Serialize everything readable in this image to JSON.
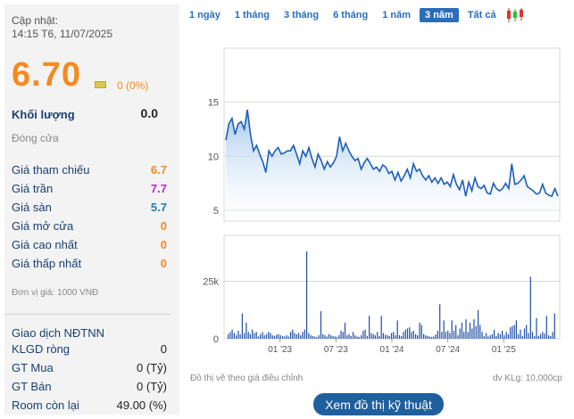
{
  "quote": {
    "updated_label": "Cập nhật:",
    "updated_time": "14:15 T6, 11/07/2025",
    "price": "6.70",
    "change": "0 (0%)",
    "volume_label": "Khối lượng",
    "volume": "0.0",
    "status": "Đóng cửa",
    "rows": [
      {
        "label": "Giá tham chiếu",
        "value": "6.7",
        "color": "#f58a1f"
      },
      {
        "label": "Giá trần",
        "value": "7.7",
        "color": "#c227c2"
      },
      {
        "label": "Giá sàn",
        "value": "5.7",
        "color": "#1e7fae"
      },
      {
        "label": "Giá mở cửa",
        "value": "0",
        "color": "#f58a1f"
      },
      {
        "label": "Giá cao nhất",
        "value": "0",
        "color": "#f58a1f"
      },
      {
        "label": "Giá thấp nhất",
        "value": "0",
        "color": "#f58a1f"
      }
    ],
    "unit_note": "Đơn vị giá: 1000 VNĐ"
  },
  "foreign": {
    "title": "Giao dịch NĐTNN",
    "rows": [
      {
        "label": "KLGD ròng",
        "value": "0"
      },
      {
        "label": "GT Mua",
        "value": "0 (Tỷ)"
      },
      {
        "label": "GT Bán",
        "value": "0 (Tỷ)"
      },
      {
        "label": "Room còn lại",
        "value": "49.00 (%)"
      }
    ]
  },
  "tabs": [
    "1 ngày",
    "1 tháng",
    "3 tháng",
    "6 tháng",
    "1 năm",
    "3 năm",
    "Tất cả"
  ],
  "active_tab": "3 năm",
  "icons": {
    "candlestick": "candlestick-chart-icon"
  },
  "chart_data": {
    "type": "area",
    "price_axis_ticks": [
      "15",
      "10",
      "5"
    ],
    "price_ylim": [
      4,
      20
    ],
    "x_ticks": [
      "01 '23",
      "07 '23",
      "01 '24",
      "07 '24",
      "01 '25"
    ],
    "price_series": [
      11.5,
      13,
      13.5,
      12,
      13,
      13.2,
      12.5,
      14.3,
      12,
      10.5,
      11,
      10.2,
      9.5,
      8.5,
      10.5,
      10,
      10.5,
      10.8,
      10.2,
      10.3,
      10.5,
      10.5,
      11,
      10.2,
      9.3,
      10.5,
      10,
      10.8,
      9.8,
      9,
      10.2,
      9.6,
      8.8,
      9.5,
      9,
      9.4,
      10,
      11.8,
      10.5,
      11.2,
      10.5,
      10,
      9.6,
      9.8,
      8.8,
      9.4,
      9.8,
      9.3,
      8.8,
      9,
      8.6,
      9.2,
      9,
      8.4,
      8.6,
      7.8,
      8.5,
      7.7,
      8.2,
      8.8,
      8,
      9.3,
      8.6,
      8.8,
      8.2,
      7.8,
      8.2,
      7.6,
      8,
      7.5,
      8,
      7.4,
      7.6,
      7.2,
      8.3,
      7.4,
      6.9,
      7.8,
      6.3,
      7.6,
      6.8,
      8,
      7.2,
      7,
      7.3,
      6.6,
      6.5,
      7.5,
      7,
      6.8,
      7,
      7.5,
      7,
      9.3,
      7.4,
      7.5,
      7.8,
      8.2,
      7.2,
      7,
      6.8,
      6.5,
      6.6,
      7.4,
      6.6,
      6.4,
      6.3,
      7,
      6.3
    ],
    "volume_axis_ticks": [
      "25k",
      "0"
    ],
    "volume_ylim": [
      0,
      45000
    ],
    "volume_series": [
      2000,
      3000,
      4000,
      2500,
      1500,
      3500,
      2000,
      11000,
      2500,
      7000,
      3000,
      2000,
      4000,
      2500,
      3000,
      1000,
      2000,
      3000,
      1500,
      2000,
      3000,
      2500,
      1500,
      1200,
      1800,
      2000,
      1500,
      1200,
      1000,
      1500,
      1000,
      3000,
      4000,
      2500,
      2000,
      2500,
      1500,
      3000,
      4000,
      38000,
      2500,
      1500,
      1200,
      1000,
      800,
      1500,
      12000,
      2000,
      1500,
      1000,
      2000,
      1500,
      1200,
      1000,
      800,
      1500,
      3500,
      3000,
      7000,
      1500,
      2000,
      1200,
      3000,
      1500,
      1000,
      800,
      1500,
      3500,
      4000,
      1200,
      10000,
      2500,
      2000,
      1500,
      3000,
      1200,
      10000,
      2500,
      1800,
      1500,
      1200,
      2500,
      3000,
      1500,
      8000,
      1500,
      1200,
      3000,
      4000,
      4500,
      5000,
      3000,
      3500,
      2000,
      1500,
      7000,
      6000,
      2000,
      1500,
      1200,
      1000,
      800,
      1000,
      2000,
      3500,
      15000,
      3000,
      8000,
      3000,
      3500,
      2500,
      8000,
      3500,
      6000,
      1500,
      4500,
      7000,
      3000,
      8500,
      3000,
      7000,
      4500,
      8500,
      5500,
      12500,
      6000,
      3000,
      1200,
      2500,
      1000,
      1500,
      2000,
      4000,
      1200,
      2500,
      2000,
      3500,
      1500,
      3000,
      2000,
      5000,
      5500,
      6000,
      8000,
      2000,
      4000,
      1200,
      4500,
      6000,
      2500,
      27000,
      3000,
      1200,
      9000,
      1200,
      2000,
      3000,
      2200,
      10000,
      1500,
      1200,
      3000,
      11000
    ],
    "footnote_left": "Đồ thị vẽ theo giá điều chỉnh",
    "footnote_right": "dv KLg: 10,000cp",
    "colors": {
      "line": "#1f5fb8",
      "fill": "#c9ddf3",
      "bar": "#1f4fa5",
      "grid": "#d9d9d9"
    }
  },
  "action_button": "Xem đồ thị kỹ thuật"
}
